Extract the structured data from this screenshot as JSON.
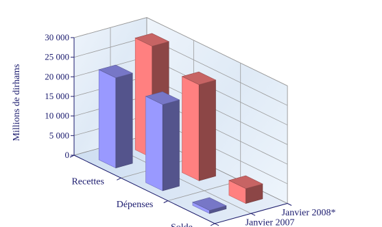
{
  "chart_data": {
    "type": "bar",
    "chart_style": "3d-clustered-column",
    "title": "",
    "ylabel": "Millions de dirhams",
    "xlabel": "",
    "ylim": [
      0,
      30000
    ],
    "yticks": [
      "0",
      "5 000",
      "10 000",
      "15 000",
      "20 000",
      "25 000",
      "30 000"
    ],
    "ytick_values": [
      0,
      5000,
      10000,
      15000,
      20000,
      25000,
      30000
    ],
    "categories": [
      "Recettes",
      "Dépenses",
      "Solde"
    ],
    "series": [
      {
        "name": "Janvier 2007",
        "color": "#9999ff",
        "values": [
          23000,
          22000,
          800
        ]
      },
      {
        "name": "Janvier 2008*",
        "color": "#ff8080",
        "values": [
          28500,
          24500,
          3800
        ]
      }
    ],
    "grid": true,
    "legend_position": "right-depth-axis"
  }
}
